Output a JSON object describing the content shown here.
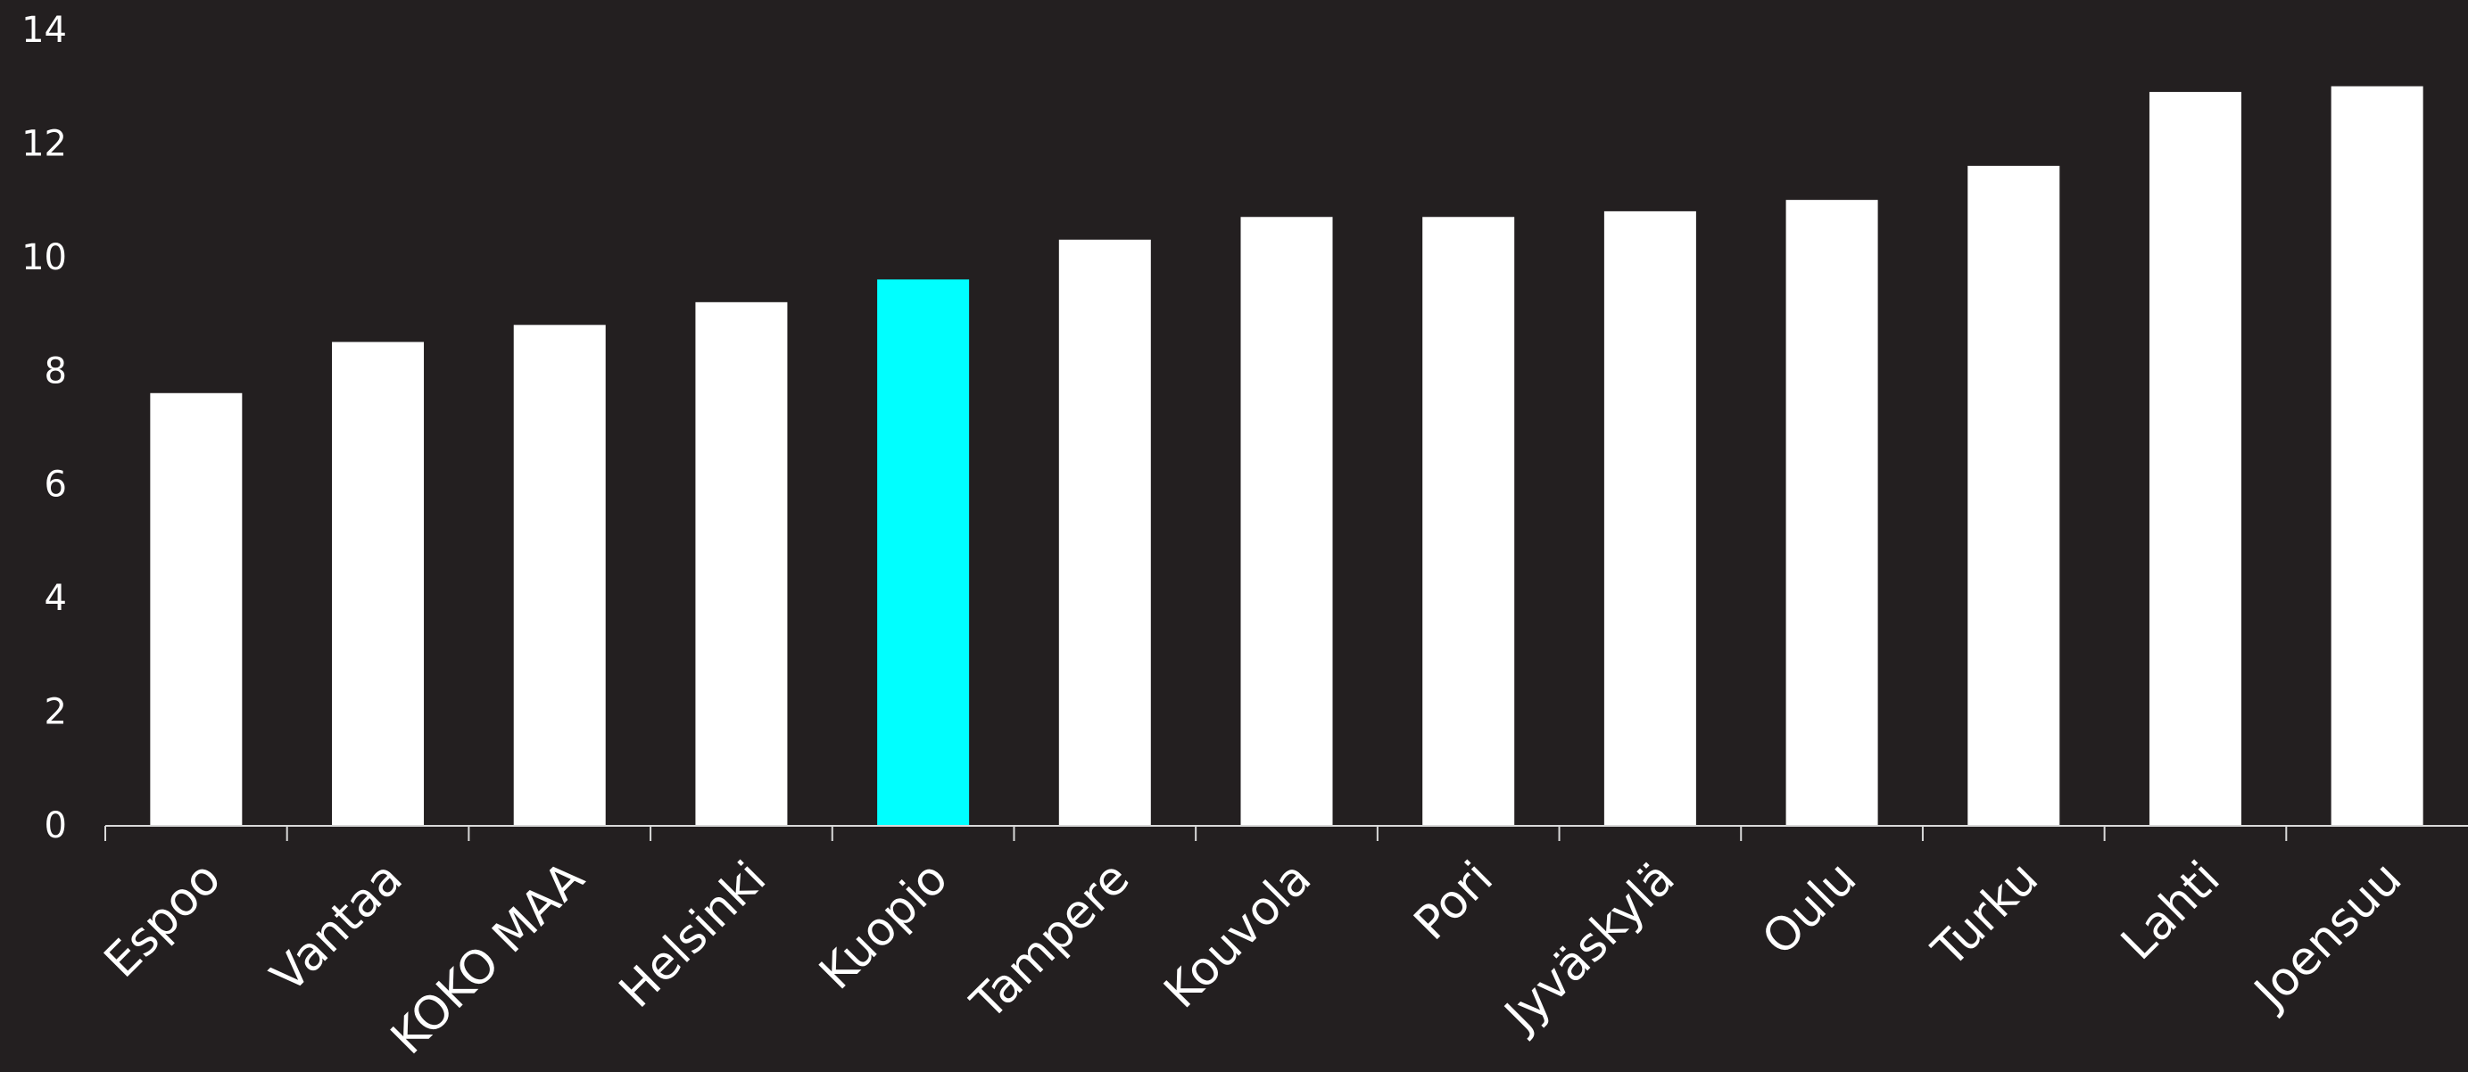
{
  "chart_data": {
    "type": "bar",
    "categories": [
      "Espoo",
      "Vantaa",
      "KOKO MAA",
      "Helsinki",
      "Kuopio",
      "Tampere",
      "Kouvola",
      "Pori",
      "Jyväskylä",
      "Oulu",
      "Turku",
      "Lahti",
      "Joensuu"
    ],
    "values": [
      7.6,
      8.5,
      8.8,
      9.2,
      9.6,
      10.3,
      10.7,
      10.7,
      10.8,
      11.0,
      11.6,
      12.9,
      13.0
    ],
    "highlight_category": "Kuopio",
    "bar_color": "#ffffff",
    "highlight_color": "#00ffff",
    "background_color": "#231f20",
    "axis_color": "#d9d9d9",
    "yticks": [
      0,
      2,
      4,
      6,
      8,
      10,
      12,
      14
    ],
    "ylim": [
      0,
      14
    ],
    "grid": false,
    "title": "",
    "xlabel": "",
    "ylabel": ""
  }
}
